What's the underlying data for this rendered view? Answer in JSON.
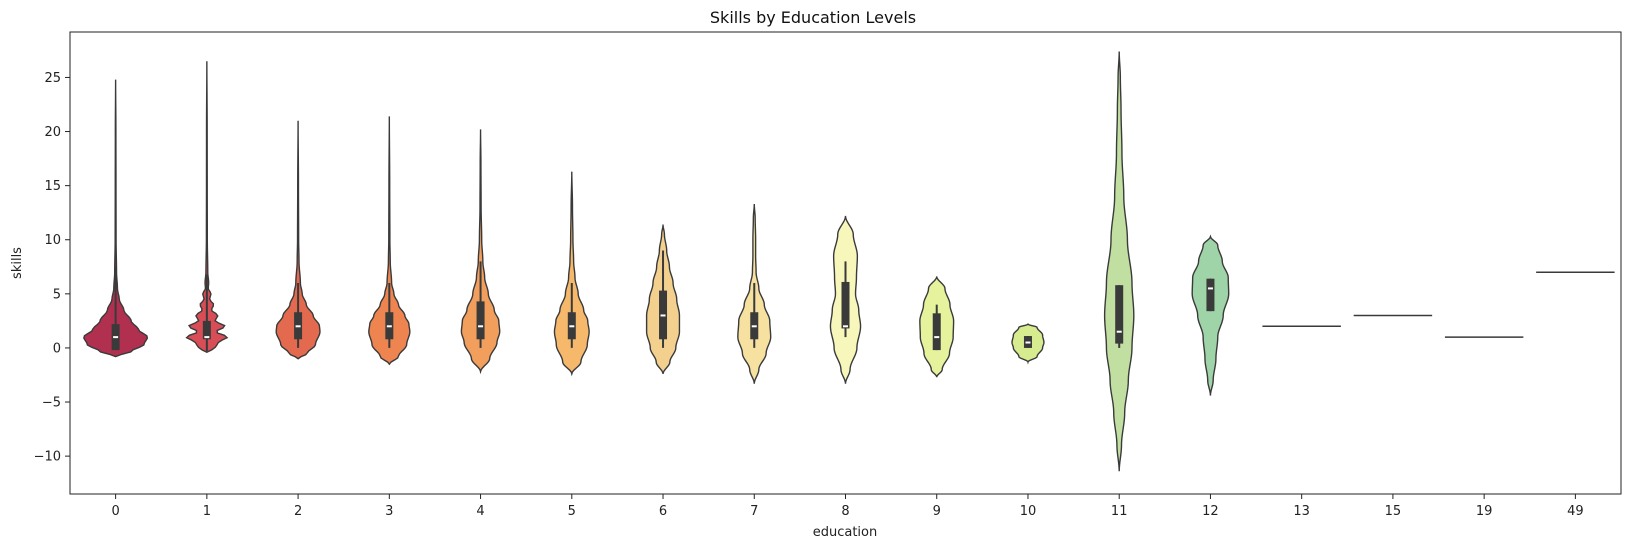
{
  "chart_data": {
    "type": "violin",
    "title": "Skills by Education Levels",
    "xlabel": "education",
    "ylabel": "skills",
    "ylim": [
      -13.5,
      29.2
    ],
    "y_ticks": [
      -10,
      -5,
      0,
      5,
      10,
      15,
      20,
      25
    ],
    "grid": false,
    "legend": "none",
    "outline_color": "#3a3a3a",
    "categories": [
      {
        "label": "0",
        "color": "#b2304f",
        "ymin": -0.8,
        "ymax": 24.8,
        "q1": -0.2,
        "median": 1,
        "q3": 2.2,
        "wmin": -0.2,
        "wmax": 7.5,
        "profile": [
          [
            -0.8,
            0
          ],
          [
            -0.3,
            0.35
          ],
          [
            0.3,
            0.62
          ],
          [
            1,
            0.7
          ],
          [
            1.7,
            0.5
          ],
          [
            2.5,
            0.34
          ],
          [
            3.5,
            0.18
          ],
          [
            4.5,
            0.08
          ],
          [
            5.5,
            0.04
          ],
          [
            7,
            0.02
          ],
          [
            10,
            0.01
          ],
          [
            15,
            0.008
          ],
          [
            20,
            0.006
          ],
          [
            24.8,
            0
          ]
        ]
      },
      {
        "label": "1",
        "color": "#d94d57",
        "ymin": -0.4,
        "ymax": 26.5,
        "q1": 0.8,
        "median": 1,
        "q3": 2.5,
        "wmin": -0.3,
        "wmax": 6.8,
        "profile": [
          [
            -0.4,
            0
          ],
          [
            0,
            0.18
          ],
          [
            0.5,
            0.25
          ],
          [
            1,
            0.45
          ],
          [
            1.5,
            0.2
          ],
          [
            2,
            0.4
          ],
          [
            2.5,
            0.18
          ],
          [
            3,
            0.24
          ],
          [
            3.5,
            0.1
          ],
          [
            4,
            0.15
          ],
          [
            4.5,
            0.06
          ],
          [
            5,
            0.09
          ],
          [
            5.5,
            0.03
          ],
          [
            6,
            0.04
          ],
          [
            7,
            0.02
          ],
          [
            10,
            0.01
          ],
          [
            15,
            0.008
          ],
          [
            20,
            0.007
          ],
          [
            26.5,
            0
          ]
        ]
      },
      {
        "label": "2",
        "color": "#e36a4f",
        "ymin": -1.0,
        "ymax": 21.0,
        "q1": 0.8,
        "median": 2,
        "q3": 3.3,
        "wmin": 0,
        "wmax": 6,
        "profile": [
          [
            -1,
            0
          ],
          [
            -0.5,
            0.2
          ],
          [
            0.3,
            0.38
          ],
          [
            1.5,
            0.48
          ],
          [
            2,
            0.47
          ],
          [
            3,
            0.33
          ],
          [
            4,
            0.18
          ],
          [
            5,
            0.09
          ],
          [
            6,
            0.05
          ],
          [
            8,
            0.02
          ],
          [
            10,
            0.012
          ],
          [
            15,
            0.008
          ],
          [
            21,
            0
          ]
        ]
      },
      {
        "label": "3",
        "color": "#ee8450",
        "ymin": -1.5,
        "ymax": 21.4,
        "q1": 0.8,
        "median": 2,
        "q3": 3.3,
        "wmin": 0,
        "wmax": 6,
        "profile": [
          [
            -1.5,
            0
          ],
          [
            -0.8,
            0.2
          ],
          [
            0.3,
            0.38
          ],
          [
            1.5,
            0.45
          ],
          [
            2.2,
            0.43
          ],
          [
            3,
            0.34
          ],
          [
            4,
            0.2
          ],
          [
            5,
            0.1
          ],
          [
            6,
            0.05
          ],
          [
            8,
            0.02
          ],
          [
            10,
            0.012
          ],
          [
            15,
            0.008
          ],
          [
            21.4,
            0
          ]
        ]
      },
      {
        "label": "4",
        "color": "#f29e5c",
        "ymin": -2.2,
        "ymax": 20.2,
        "q1": 0.8,
        "median": 2,
        "q3": 4.3,
        "wmin": 0,
        "wmax": 8,
        "profile": [
          [
            -2.2,
            0
          ],
          [
            -1,
            0.2
          ],
          [
            0.5,
            0.36
          ],
          [
            1.5,
            0.42
          ],
          [
            2.5,
            0.4
          ],
          [
            3.5,
            0.3
          ],
          [
            5,
            0.17
          ],
          [
            6.5,
            0.09
          ],
          [
            8,
            0.05
          ],
          [
            10,
            0.025
          ],
          [
            13,
            0.012
          ],
          [
            17,
            0.008
          ],
          [
            20.2,
            0
          ]
        ]
      },
      {
        "label": "5",
        "color": "#f6b96b",
        "ymin": -2.4,
        "ymax": 16.3,
        "q1": 0.8,
        "median": 2,
        "q3": 3.3,
        "wmin": 0,
        "wmax": 6,
        "profile": [
          [
            -2.4,
            0
          ],
          [
            -1.3,
            0.2
          ],
          [
            0.3,
            0.34
          ],
          [
            1.5,
            0.38
          ],
          [
            2.5,
            0.35
          ],
          [
            3.5,
            0.26
          ],
          [
            5,
            0.14
          ],
          [
            6.5,
            0.07
          ],
          [
            8,
            0.04
          ],
          [
            10,
            0.025
          ],
          [
            13,
            0.015
          ],
          [
            16.3,
            0
          ]
        ]
      },
      {
        "label": "6",
        "color": "#f4d08e",
        "ymin": -2.4,
        "ymax": 11.4,
        "q1": 0.8,
        "median": 3,
        "q3": 5.3,
        "wmin": 0,
        "wmax": 9,
        "profile": [
          [
            -2.4,
            0
          ],
          [
            -1.3,
            0.15
          ],
          [
            0,
            0.28
          ],
          [
            1.5,
            0.36
          ],
          [
            3,
            0.36
          ],
          [
            4.5,
            0.3
          ],
          [
            6,
            0.22
          ],
          [
            7.5,
            0.14
          ],
          [
            9,
            0.08
          ],
          [
            10.5,
            0.03
          ],
          [
            11.4,
            0
          ]
        ]
      },
      {
        "label": "7",
        "color": "#f6e1a0",
        "ymin": -3.3,
        "ymax": 13.3,
        "q1": 0.8,
        "median": 2,
        "q3": 3.3,
        "wmin": 0,
        "wmax": 6,
        "profile": [
          [
            -3.3,
            0
          ],
          [
            -2,
            0.1
          ],
          [
            -0.5,
            0.26
          ],
          [
            1,
            0.36
          ],
          [
            2.5,
            0.34
          ],
          [
            4,
            0.22
          ],
          [
            5.5,
            0.1
          ],
          [
            7,
            0.04
          ],
          [
            8.5,
            0.03
          ],
          [
            10,
            0.03
          ],
          [
            12,
            0.02
          ],
          [
            13.3,
            0
          ]
        ]
      },
      {
        "label": "8",
        "color": "#f8f7bb",
        "ymin": -3.3,
        "ymax": 12.2,
        "q1": 1.8,
        "median": 2,
        "q3": 6.1,
        "wmin": 1,
        "wmax": 8,
        "profile": [
          [
            -3.3,
            0
          ],
          [
            -2,
            0.1
          ],
          [
            0,
            0.25
          ],
          [
            2,
            0.33
          ],
          [
            3.5,
            0.29
          ],
          [
            5,
            0.22
          ],
          [
            6.5,
            0.24
          ],
          [
            8.5,
            0.26
          ],
          [
            10.5,
            0.17
          ],
          [
            12.2,
            0
          ]
        ]
      },
      {
        "label": "9",
        "color": "#e6f29c",
        "ymin": -2.7,
        "ymax": 6.6,
        "q1": -0.2,
        "median": 1,
        "q3": 3.2,
        "wmin": -0.2,
        "wmax": 4,
        "profile": [
          [
            -2.7,
            0
          ],
          [
            -2,
            0.12
          ],
          [
            -0.5,
            0.28
          ],
          [
            1,
            0.36
          ],
          [
            2.5,
            0.37
          ],
          [
            4,
            0.29
          ],
          [
            5.5,
            0.18
          ],
          [
            6.6,
            0
          ]
        ]
      },
      {
        "label": "10",
        "color": "#d6ec8f",
        "ymin": -1.3,
        "ymax": 2.2,
        "q1": 0,
        "median": 0.5,
        "q3": 1.1,
        "wmin": 0,
        "wmax": 1.1,
        "profile": [
          [
            -1.3,
            0
          ],
          [
            -0.8,
            0.2
          ],
          [
            0,
            0.32
          ],
          [
            0.5,
            0.35
          ],
          [
            1.2,
            0.32
          ],
          [
            1.9,
            0.2
          ],
          [
            2.2,
            0
          ]
        ]
      },
      {
        "label": "11",
        "color": "#c1dfa1",
        "ymin": -11.4,
        "ymax": 27.4,
        "q1": 0.4,
        "median": 1.5,
        "q3": 5.8,
        "wmin": 0,
        "wmax": 5.8,
        "profile": [
          [
            -11.4,
            0
          ],
          [
            -9,
            0.05
          ],
          [
            -6,
            0.12
          ],
          [
            -3,
            0.2
          ],
          [
            0,
            0.28
          ],
          [
            3,
            0.32
          ],
          [
            6,
            0.28
          ],
          [
            10,
            0.18
          ],
          [
            14,
            0.1
          ],
          [
            18,
            0.06
          ],
          [
            22,
            0.04
          ],
          [
            25,
            0.025
          ],
          [
            27.4,
            0
          ]
        ]
      },
      {
        "label": "12",
        "color": "#9fd3a8",
        "ymin": -4.4,
        "ymax": 10.3,
        "q1": 3.4,
        "median": 5.5,
        "q3": 6.4,
        "wmin": 3.4,
        "wmax": 6.4,
        "profile": [
          [
            -4.4,
            0
          ],
          [
            -3,
            0.06
          ],
          [
            -1,
            0.12
          ],
          [
            1,
            0.16
          ],
          [
            3,
            0.28
          ],
          [
            5,
            0.4
          ],
          [
            6.5,
            0.39
          ],
          [
            8,
            0.26
          ],
          [
            9.5,
            0.16
          ],
          [
            10.3,
            0
          ]
        ]
      },
      {
        "label": "13",
        "color": "#86c9a5",
        "single_value": 2
      },
      {
        "label": "15",
        "color": "#6eb9a9",
        "single_value": 3
      },
      {
        "label": "19",
        "color": "#58a6ad",
        "single_value": 1
      },
      {
        "label": "49",
        "color": "#4a91b0",
        "single_value": 7
      }
    ]
  }
}
